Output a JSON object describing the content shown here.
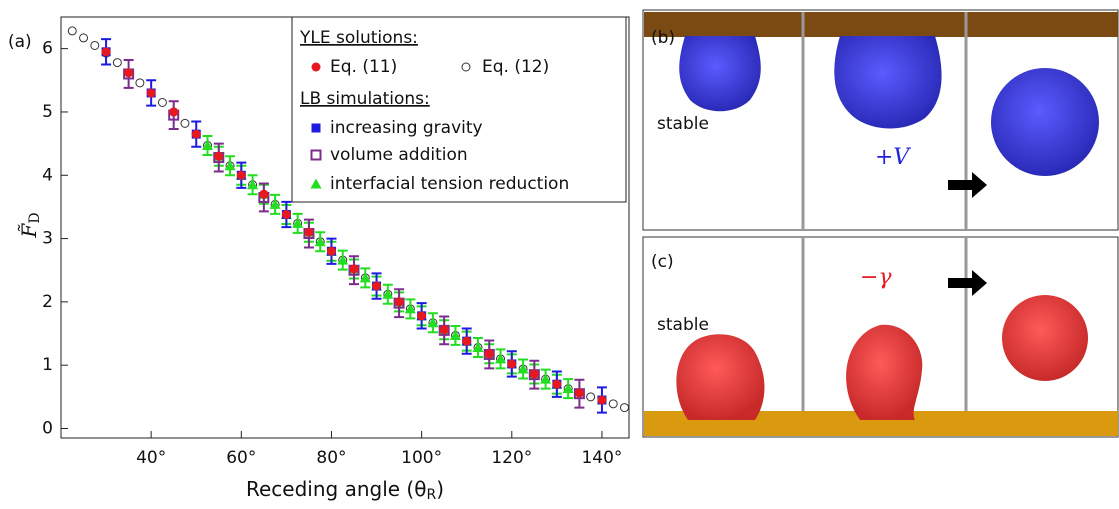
{
  "chart_data": {
    "type": "scatter",
    "panel_label": "(a)",
    "xlabel": {
      "main": "Receding angle (θ",
      "sub": "R",
      "end": ")"
    },
    "ylabel": {
      "main": "F̃",
      "sub": "D"
    },
    "xlim": [
      20,
      146
    ],
    "ylim": [
      -0.15,
      6.5
    ],
    "xticks": [
      {
        "value": 40,
        "label": "40°"
      },
      {
        "value": 60,
        "label": "60°"
      },
      {
        "value": 80,
        "label": "80°"
      },
      {
        "value": 100,
        "label": "100°"
      },
      {
        "value": 120,
        "label": "120°"
      },
      {
        "value": 140,
        "label": "140°"
      }
    ],
    "yticks": [
      0,
      1,
      2,
      3,
      4,
      5,
      6
    ],
    "legend_headings": [
      "YLE solutions:",
      "LB simulations:"
    ],
    "series": [
      {
        "name": "Eq. (11)",
        "color": "#e8191e",
        "marker": "dot",
        "x": [
          30,
          35,
          40,
          45,
          50,
          55,
          60,
          65,
          70,
          75,
          80,
          85,
          90,
          95,
          100,
          105,
          110,
          115,
          120,
          125,
          130,
          135,
          140
        ],
        "values": [
          5.95,
          5.62,
          5.3,
          5.0,
          4.65,
          4.3,
          4.0,
          3.7,
          3.38,
          3.1,
          2.8,
          2.52,
          2.25,
          2.0,
          1.78,
          1.56,
          1.38,
          1.18,
          1.02,
          0.86,
          0.7,
          0.56,
          0.45
        ]
      },
      {
        "name": "Eq. (12)",
        "color": "#333333",
        "marker": "circle",
        "x": [
          22.5,
          25,
          27.5,
          30,
          32.5,
          35,
          37.5,
          40,
          42.5,
          45,
          47.5,
          50,
          52.5,
          55,
          57.5,
          60,
          62.5,
          65,
          67.5,
          70,
          72.5,
          75,
          77.5,
          80,
          82.5,
          85,
          87.5,
          90,
          92.5,
          95,
          97.5,
          100,
          102.5,
          105,
          107.5,
          110,
          112.5,
          115,
          117.5,
          120,
          122.5,
          125,
          127.5,
          130,
          132.5,
          135,
          137.5,
          140,
          142.5,
          145
        ],
        "values": [
          6.28,
          6.17,
          6.05,
          5.93,
          5.78,
          5.62,
          5.46,
          5.3,
          5.15,
          5.0,
          4.82,
          4.65,
          4.47,
          4.3,
          4.15,
          4.0,
          3.85,
          3.7,
          3.54,
          3.38,
          3.24,
          3.1,
          2.95,
          2.8,
          2.66,
          2.52,
          2.38,
          2.25,
          2.12,
          2.0,
          1.89,
          1.78,
          1.67,
          1.56,
          1.47,
          1.38,
          1.28,
          1.18,
          1.1,
          1.02,
          0.94,
          0.86,
          0.78,
          0.7,
          0.63,
          0.56,
          0.5,
          0.45,
          0.39,
          0.33
        ]
      },
      {
        "name": "increasing gravity",
        "color": "#1c1ce0",
        "marker": "square",
        "error": 0.2,
        "x": [
          30,
          40,
          50,
          60,
          70,
          80,
          90,
          100,
          110,
          120,
          130,
          140
        ],
        "values": [
          5.95,
          5.3,
          4.65,
          4.0,
          3.38,
          2.8,
          2.25,
          1.78,
          1.38,
          1.02,
          0.7,
          0.45
        ]
      },
      {
        "name": "volume addition",
        "color": "#7b2d8e",
        "marker": "open-square",
        "error": 0.22,
        "x": [
          35,
          45,
          55,
          65,
          75,
          85,
          95,
          105,
          115,
          125,
          135
        ],
        "values": [
          5.6,
          4.95,
          4.28,
          3.65,
          3.08,
          2.5,
          1.98,
          1.55,
          1.17,
          0.85,
          0.55
        ]
      },
      {
        "name": "interfacial tension reduction",
        "color": "#22dd22",
        "marker": "triangle",
        "error": 0.15,
        "x": [
          52.5,
          55,
          57.5,
          60,
          62.5,
          65,
          67.5,
          70,
          72.5,
          75,
          77.5,
          80,
          82.5,
          85,
          87.5,
          90,
          92.5,
          95,
          97.5,
          100,
          102.5,
          105,
          107.5,
          110,
          112.5,
          115,
          117.5,
          120,
          122.5,
          125,
          127.5,
          130,
          132.5
        ],
        "values": [
          4.47,
          4.3,
          4.15,
          4.0,
          3.85,
          3.7,
          3.54,
          3.38,
          3.24,
          3.1,
          2.95,
          2.8,
          2.66,
          2.52,
          2.38,
          2.25,
          2.12,
          2.0,
          1.89,
          1.78,
          1.67,
          1.56,
          1.47,
          1.38,
          1.28,
          1.18,
          1.1,
          1.02,
          0.94,
          0.86,
          0.78,
          0.7,
          0.63
        ]
      }
    ]
  },
  "panels": {
    "b": {
      "label": "(b)",
      "stable": "stable",
      "action": "+V"
    },
    "c": {
      "label": "(c)",
      "stable": "stable",
      "action": "−γ"
    }
  }
}
